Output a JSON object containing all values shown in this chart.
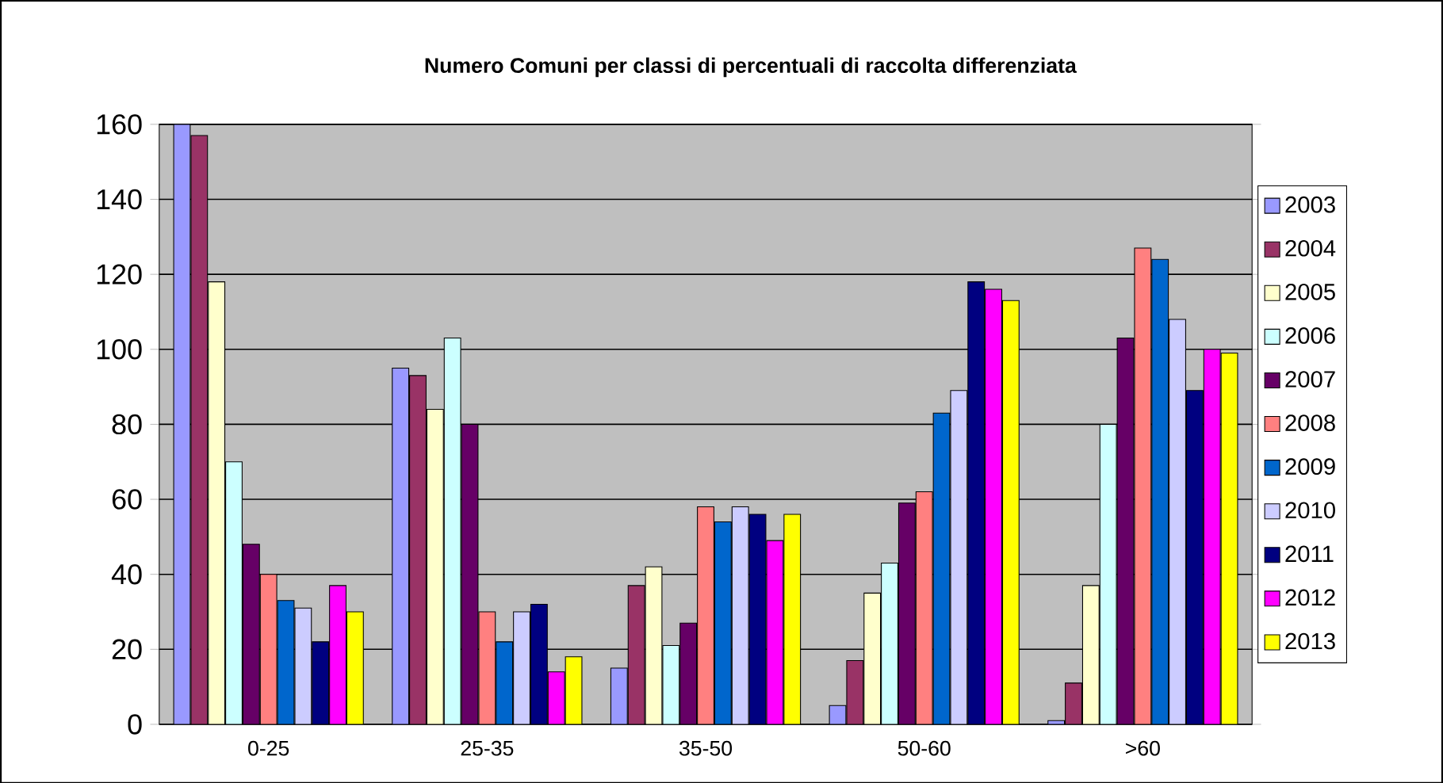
{
  "chart_data": {
    "type": "bar",
    "title": "Numero Comuni per classi di percentuali di raccolta differenziata",
    "categories": [
      "0-25",
      "25-35",
      "35-50",
      "50-60",
      ">60"
    ],
    "series": [
      {
        "name": "2003",
        "color": "#9999ff",
        "values": [
          160,
          95,
          15,
          5,
          1
        ]
      },
      {
        "name": "2004",
        "color": "#993366",
        "values": [
          157,
          93,
          37,
          17,
          11
        ]
      },
      {
        "name": "2005",
        "color": "#ffffcc",
        "values": [
          118,
          84,
          42,
          35,
          37
        ]
      },
      {
        "name": "2006",
        "color": "#ccffff",
        "values": [
          70,
          103,
          21,
          43,
          80
        ]
      },
      {
        "name": "2007",
        "color": "#660066",
        "values": [
          48,
          80,
          27,
          59,
          103
        ]
      },
      {
        "name": "2008",
        "color": "#ff8080",
        "values": [
          40,
          30,
          58,
          62,
          127
        ]
      },
      {
        "name": "2009",
        "color": "#0066cc",
        "values": [
          33,
          22,
          54,
          83,
          124
        ]
      },
      {
        "name": "2010",
        "color": "#ccccff",
        "values": [
          31,
          30,
          58,
          89,
          108
        ]
      },
      {
        "name": "2011",
        "color": "#000080",
        "values": [
          22,
          32,
          56,
          118,
          89
        ]
      },
      {
        "name": "2012",
        "color": "#ff00ff",
        "values": [
          37,
          14,
          49,
          116,
          100
        ]
      },
      {
        "name": "2013",
        "color": "#ffff00",
        "values": [
          30,
          18,
          56,
          113,
          99
        ]
      }
    ],
    "ylim": [
      0,
      160
    ],
    "yticks": [
      0,
      20,
      40,
      60,
      80,
      100,
      120,
      140,
      160
    ],
    "grid": "y",
    "legend": "right"
  }
}
